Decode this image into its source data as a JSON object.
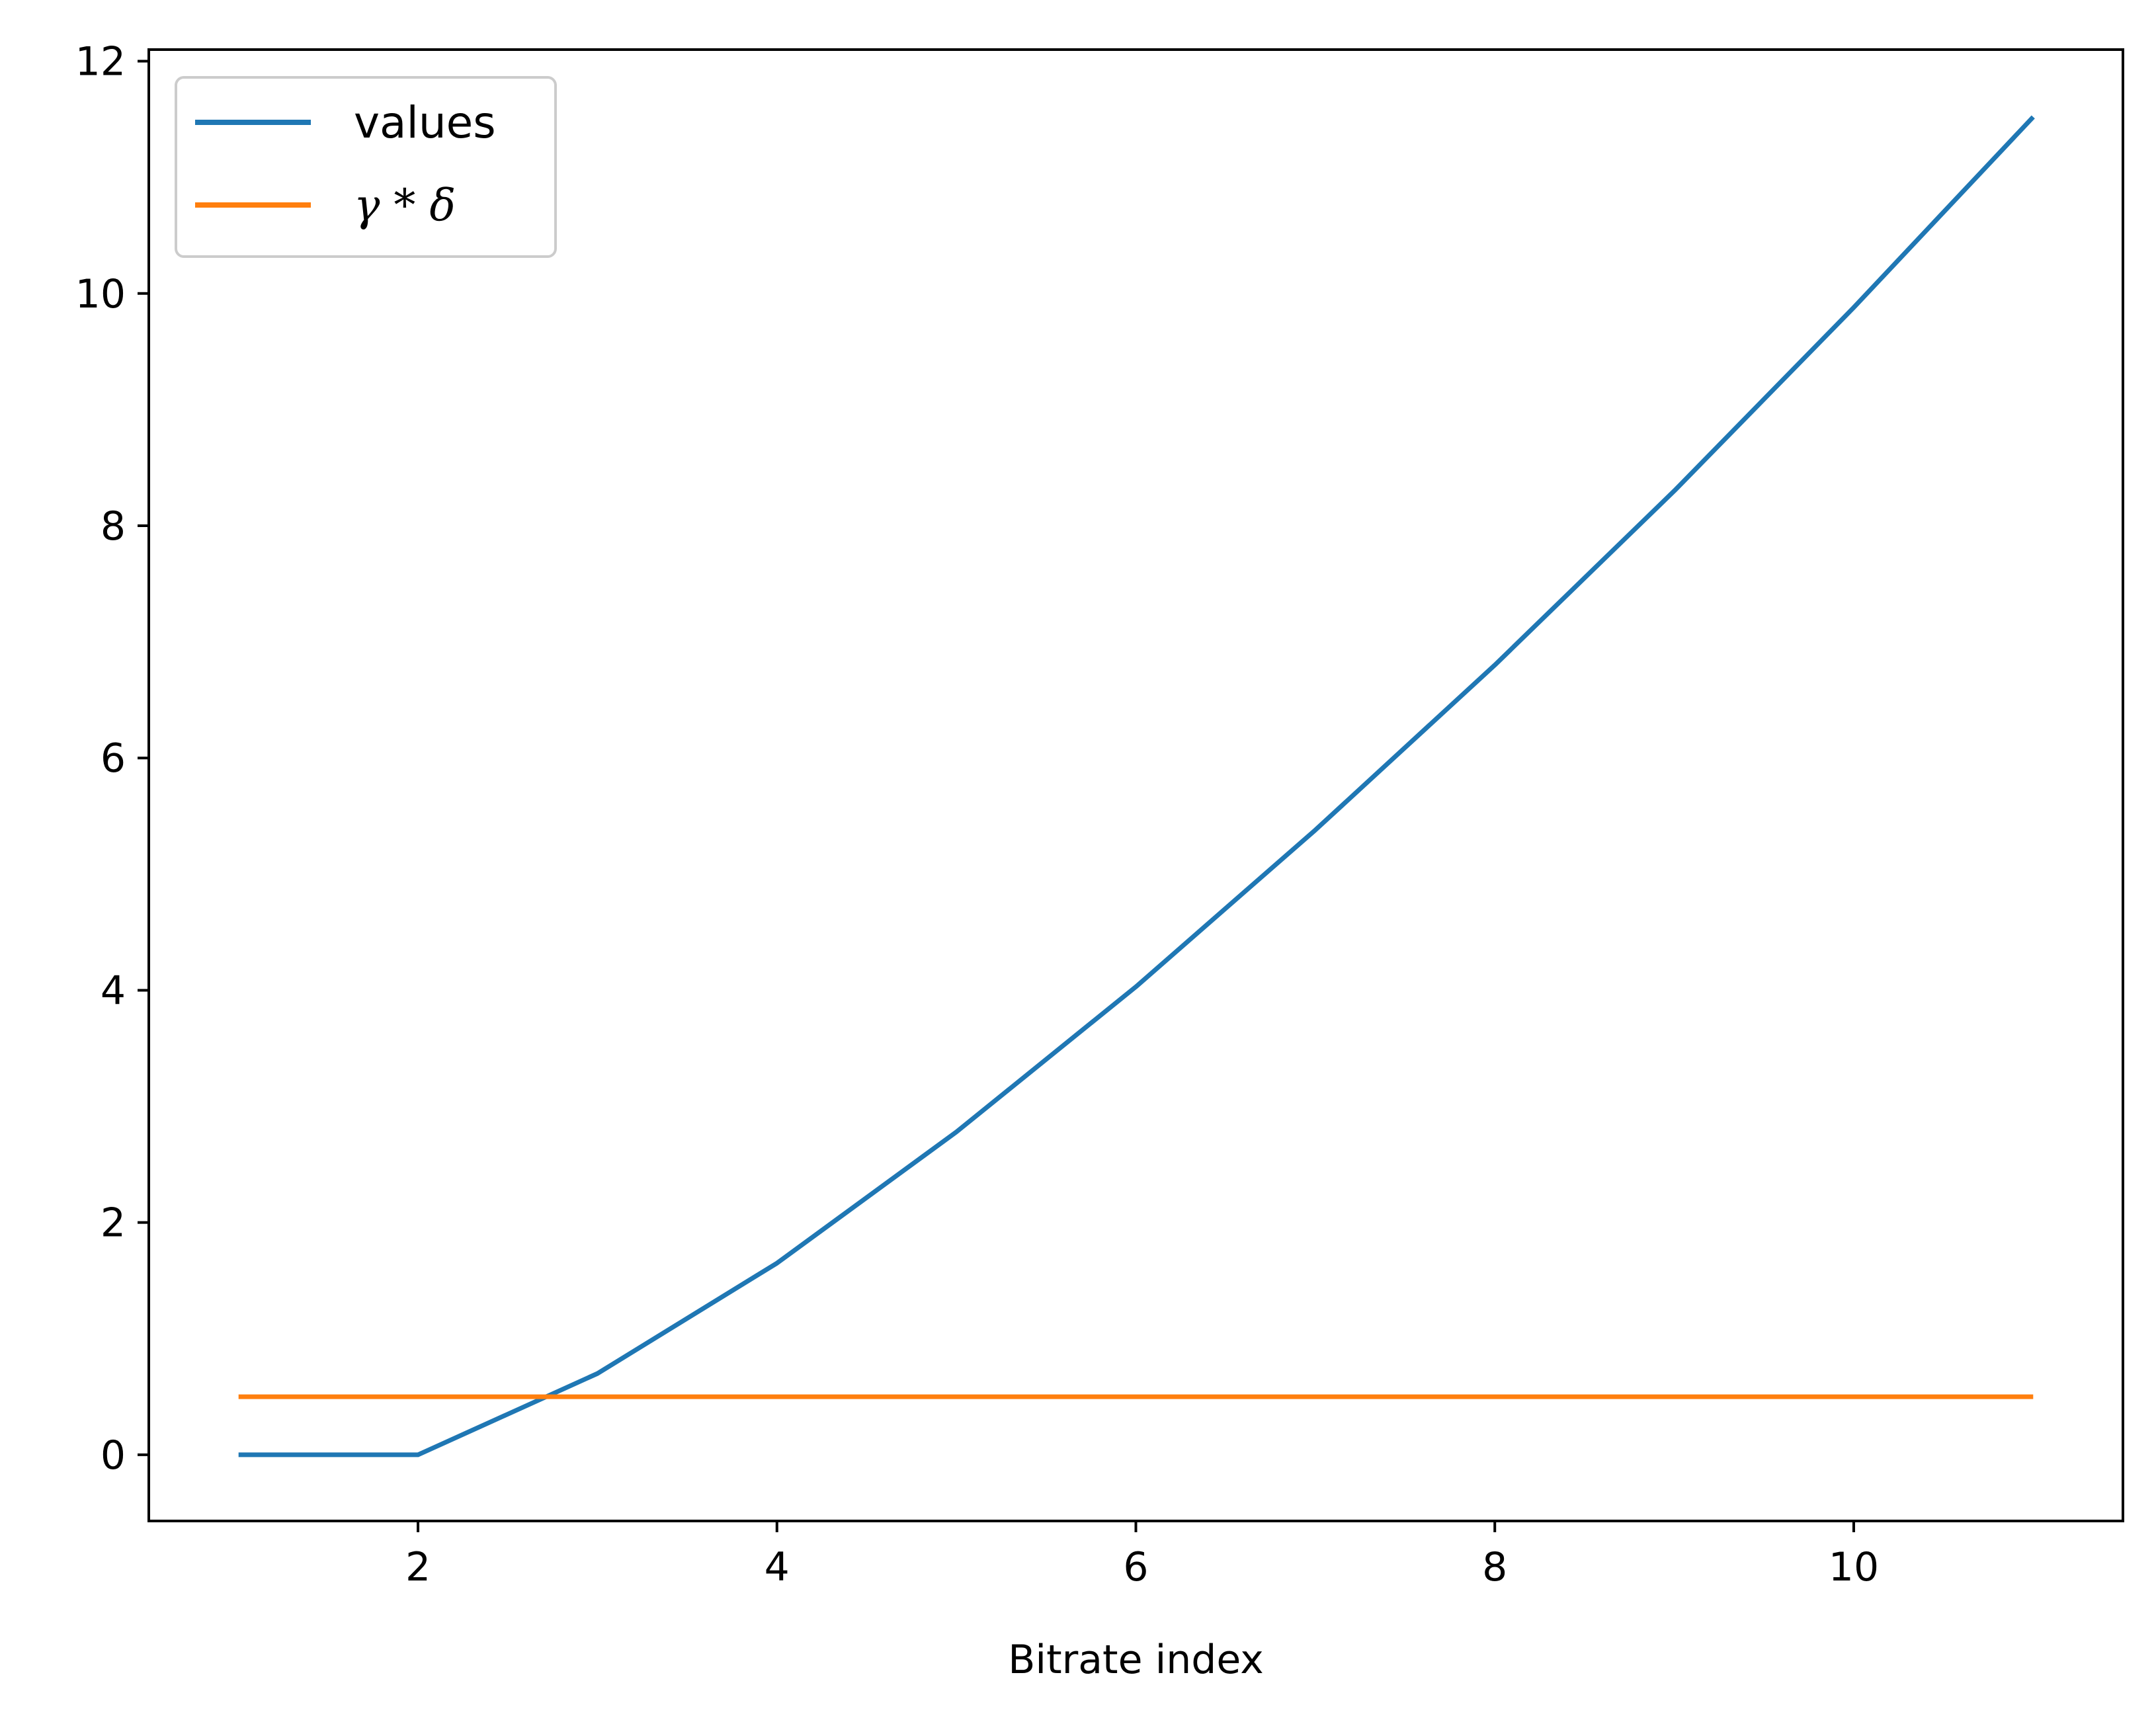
{
  "chart_data": {
    "type": "line",
    "title": "",
    "xlabel": "Bitrate index",
    "ylabel": "",
    "xlim": [
      0.5,
      11.5
    ],
    "ylim": [
      -0.57,
      12.1
    ],
    "x_ticks": [
      2,
      4,
      6,
      8,
      10
    ],
    "y_ticks": [
      0,
      2,
      4,
      6,
      8,
      10,
      12
    ],
    "grid": false,
    "legend_position": "top-left",
    "series": [
      {
        "name": "values",
        "color": "#1f77b4",
        "x": [
          1,
          2,
          3,
          4,
          5,
          6,
          7,
          8,
          9,
          10,
          11
        ],
        "y": [
          0,
          0,
          0.7,
          1.65,
          2.78,
          4.03,
          5.38,
          6.8,
          8.3,
          9.88,
          11.52
        ]
      },
      {
        "name": "γ * δ",
        "color": "#ff7f0e",
        "x": [
          1,
          2,
          3,
          4,
          5,
          6,
          7,
          8,
          9,
          10,
          11
        ],
        "y": [
          0.5,
          0.5,
          0.5,
          0.5,
          0.5,
          0.5,
          0.5,
          0.5,
          0.5,
          0.5,
          0.5
        ]
      }
    ]
  }
}
